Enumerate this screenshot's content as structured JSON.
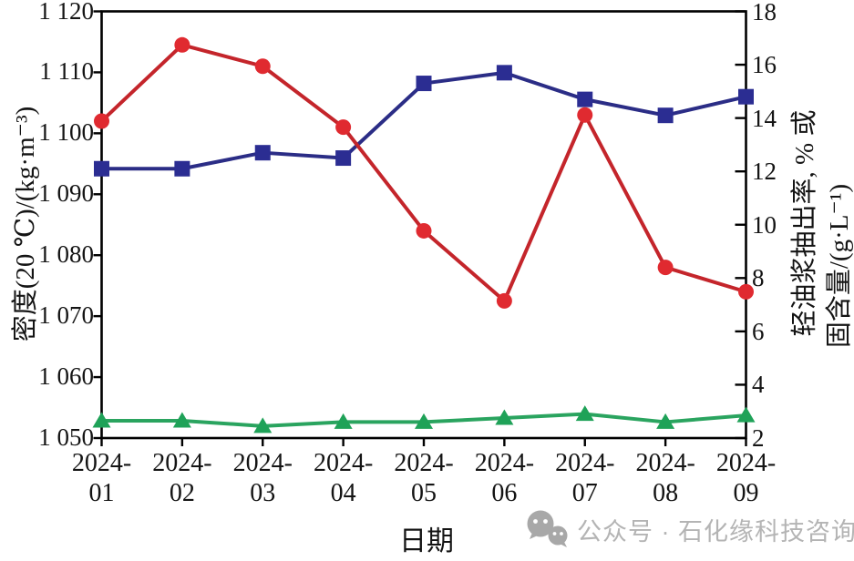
{
  "chart_data": {
    "type": "line",
    "xlabel": "日期",
    "x_categories": [
      "2024-01",
      "2024-02",
      "2024-03",
      "2024-04",
      "2024-05",
      "2024-06",
      "2024-07",
      "2024-08",
      "2024-09"
    ],
    "x_tick_labels": [
      {
        "top": "2024-",
        "bottom": "01"
      },
      {
        "top": "2024-",
        "bottom": "02"
      },
      {
        "top": "2024-",
        "bottom": "03"
      },
      {
        "top": "2024-",
        "bottom": "04"
      },
      {
        "top": "2024-",
        "bottom": "05"
      },
      {
        "top": "2024-",
        "bottom": "06"
      },
      {
        "top": "2024-",
        "bottom": "07"
      },
      {
        "top": "2024-",
        "bottom": "08"
      },
      {
        "top": "2024-",
        "bottom": "09"
      }
    ],
    "left_axis": {
      "label": "密度(20 ℃)/(kg·m⁻³)",
      "min": 1050,
      "max": 1120,
      "step": 10,
      "tick_labels": [
        "1 050",
        "1 060",
        "1 070",
        "1 080",
        "1 090",
        "1 100",
        "1 110",
        "1 120"
      ]
    },
    "right_axis": {
      "label_line1": "轻油浆抽出率, % 或",
      "label_line2": "固含量/(g·L⁻¹)",
      "min": 2,
      "max": 18,
      "step": 2,
      "tick_labels": [
        "2",
        "4",
        "6",
        "8",
        "10",
        "12",
        "14",
        "16",
        "18"
      ]
    },
    "grid": false,
    "legend": "none",
    "series": [
      {
        "name": "green-triangle-series",
        "axis": "right",
        "marker": "triangle",
        "line_color": "#2aa45f",
        "marker_color": "#1fa258",
        "values": [
          2.65,
          2.65,
          2.45,
          2.6,
          2.6,
          2.75,
          2.9,
          2.6,
          2.85
        ]
      },
      {
        "name": "blue-square-series",
        "axis": "right",
        "marker": "square",
        "line_color": "#2b2d86",
        "marker_color": "#2b2d92",
        "values": [
          12.1,
          12.1,
          12.7,
          12.5,
          15.3,
          15.7,
          14.7,
          14.1,
          14.8
        ]
      },
      {
        "name": "red-circle-series",
        "axis": "left",
        "marker": "circle",
        "line_color": "#c4252b",
        "marker_color": "#e02a30",
        "values": [
          1102,
          1114.5,
          1111,
          1101,
          1084,
          1072.5,
          1103,
          1078,
          1074
        ]
      }
    ],
    "axis_color": "#000000",
    "text_color": "#141414"
  },
  "watermark": {
    "icon": "wechat-icon",
    "text": "公众号 · 石化缘科技咨询",
    "color": "#b4b4b4"
  }
}
